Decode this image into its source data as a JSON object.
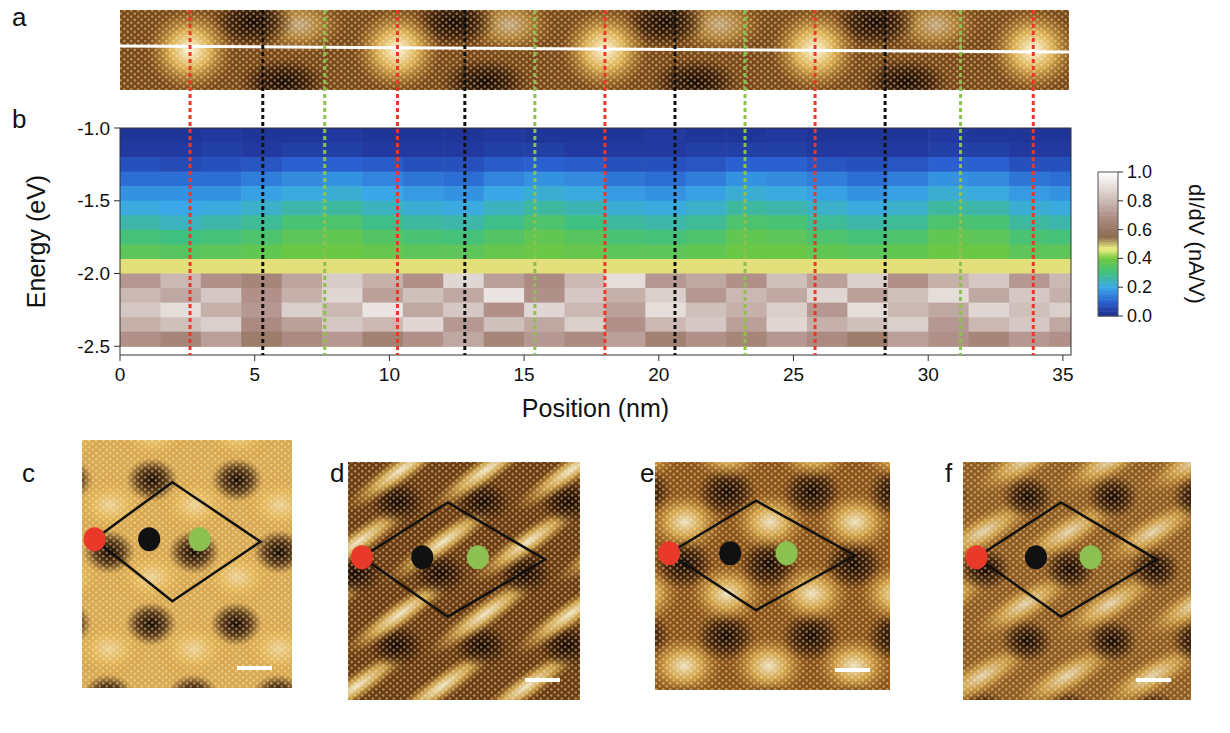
{
  "chart_data": {
    "type": "heatmap",
    "panel_labels": [
      "a",
      "b",
      "c",
      "d",
      "e",
      "f"
    ],
    "x_label": "Position (nm)",
    "y_label": "Energy (eV)",
    "x": [
      0.75,
      2.25,
      3.75,
      5.25,
      6.75,
      8.25,
      9.75,
      11.25,
      12.75,
      14.25,
      15.75,
      17.25,
      18.75,
      20.25,
      21.75,
      23.25,
      24.75,
      26.25,
      27.75,
      29.25,
      30.75,
      32.25,
      33.75,
      35.25
    ],
    "y": [
      -1.05,
      -1.15,
      -1.25,
      -1.35,
      -1.45,
      -1.55,
      -1.65,
      -1.75,
      -1.85,
      -1.95,
      -2.05,
      -2.15,
      -2.25,
      -2.35,
      -2.45
    ],
    "values": [
      [
        0.02,
        0.02,
        0.03,
        0.02,
        0.02,
        0.03,
        0.02,
        0.02,
        0.02,
        0.03,
        0.02,
        0.02,
        0.02,
        0.03,
        0.02,
        0.02,
        0.03,
        0.02,
        0.02,
        0.02,
        0.03,
        0.02,
        0.02,
        0.02
      ],
      [
        0.03,
        0.03,
        0.04,
        0.03,
        0.04,
        0.04,
        0.03,
        0.03,
        0.03,
        0.04,
        0.04,
        0.03,
        0.03,
        0.03,
        0.04,
        0.04,
        0.04,
        0.03,
        0.03,
        0.03,
        0.04,
        0.04,
        0.03,
        0.03
      ],
      [
        0.07,
        0.06,
        0.07,
        0.08,
        0.1,
        0.1,
        0.09,
        0.07,
        0.07,
        0.09,
        0.1,
        0.09,
        0.07,
        0.07,
        0.08,
        0.1,
        0.1,
        0.08,
        0.07,
        0.08,
        0.1,
        0.1,
        0.07,
        0.07
      ],
      [
        0.12,
        0.12,
        0.12,
        0.14,
        0.16,
        0.17,
        0.15,
        0.13,
        0.12,
        0.15,
        0.17,
        0.16,
        0.13,
        0.12,
        0.14,
        0.17,
        0.16,
        0.14,
        0.12,
        0.14,
        0.17,
        0.16,
        0.13,
        0.12
      ],
      [
        0.17,
        0.17,
        0.17,
        0.19,
        0.21,
        0.22,
        0.2,
        0.18,
        0.17,
        0.2,
        0.22,
        0.21,
        0.18,
        0.17,
        0.19,
        0.22,
        0.21,
        0.19,
        0.17,
        0.19,
        0.22,
        0.21,
        0.18,
        0.17
      ],
      [
        0.21,
        0.2,
        0.21,
        0.23,
        0.26,
        0.27,
        0.24,
        0.22,
        0.21,
        0.24,
        0.27,
        0.25,
        0.22,
        0.21,
        0.23,
        0.27,
        0.26,
        0.23,
        0.21,
        0.23,
        0.27,
        0.26,
        0.22,
        0.21
      ],
      [
        0.26,
        0.24,
        0.26,
        0.28,
        0.32,
        0.33,
        0.29,
        0.27,
        0.26,
        0.29,
        0.33,
        0.3,
        0.27,
        0.26,
        0.28,
        0.33,
        0.32,
        0.28,
        0.26,
        0.28,
        0.33,
        0.32,
        0.27,
        0.26
      ],
      [
        0.31,
        0.3,
        0.31,
        0.33,
        0.36,
        0.37,
        0.34,
        0.32,
        0.31,
        0.34,
        0.37,
        0.35,
        0.32,
        0.31,
        0.33,
        0.37,
        0.36,
        0.33,
        0.31,
        0.33,
        0.37,
        0.36,
        0.32,
        0.31
      ],
      [
        0.36,
        0.35,
        0.36,
        0.37,
        0.39,
        0.39,
        0.38,
        0.36,
        0.36,
        0.38,
        0.39,
        0.38,
        0.36,
        0.36,
        0.37,
        0.39,
        0.39,
        0.37,
        0.36,
        0.37,
        0.39,
        0.39,
        0.36,
        0.36
      ],
      [
        0.48,
        0.48,
        0.48,
        0.48,
        0.48,
        0.48,
        0.48,
        0.48,
        0.48,
        0.48,
        0.48,
        0.48,
        0.48,
        0.48,
        0.48,
        0.48,
        0.48,
        0.48,
        0.48,
        0.48,
        0.48,
        0.48,
        0.48,
        0.48
      ],
      [
        0.72,
        0.8,
        0.7,
        0.66,
        0.75,
        0.85,
        0.78,
        0.7,
        0.88,
        0.74,
        0.68,
        0.8,
        0.9,
        0.72,
        0.76,
        0.7,
        0.82,
        0.74,
        0.86,
        0.7,
        0.78,
        0.84,
        0.72,
        0.8
      ],
      [
        0.8,
        0.76,
        0.84,
        0.7,
        0.78,
        0.88,
        0.74,
        0.82,
        0.76,
        0.92,
        0.7,
        0.84,
        0.78,
        0.86,
        0.72,
        0.8,
        0.76,
        0.88,
        0.74,
        0.82,
        0.9,
        0.76,
        0.84,
        0.78
      ],
      [
        0.84,
        0.9,
        0.78,
        0.72,
        0.86,
        0.8,
        0.92,
        0.76,
        0.84,
        0.7,
        0.88,
        0.8,
        0.74,
        0.9,
        0.82,
        0.78,
        0.86,
        0.72,
        0.9,
        0.8,
        0.76,
        0.88,
        0.82,
        0.86
      ],
      [
        0.78,
        0.82,
        0.86,
        0.68,
        0.74,
        0.84,
        0.8,
        0.88,
        0.72,
        0.82,
        0.76,
        0.86,
        0.7,
        0.8,
        0.84,
        0.74,
        0.88,
        0.78,
        0.82,
        0.86,
        0.72,
        0.8,
        0.84,
        0.76
      ],
      [
        0.7,
        0.66,
        0.74,
        0.62,
        0.68,
        0.72,
        0.64,
        0.7,
        0.76,
        0.66,
        0.72,
        0.68,
        0.74,
        0.64,
        0.7,
        0.66,
        0.72,
        0.68,
        0.62,
        0.74,
        0.7,
        0.66,
        0.72,
        0.7
      ]
    ],
    "xlim": [
      0,
      35.3
    ],
    "xticks": [
      0,
      5,
      10,
      15,
      20,
      25,
      30,
      35
    ],
    "ylim": [
      -2.56,
      -1.0
    ],
    "yticks": [
      {
        "value": -1,
        "label": "-1.0"
      },
      {
        "value": -1.5,
        "label": "-1.5"
      },
      {
        "value": -2,
        "label": "-2.0"
      },
      {
        "value": -2.5,
        "label": "-2.5"
      }
    ],
    "colorbar": {
      "label": "dI/dV (nA/V)",
      "range": [
        0,
        1
      ],
      "ticks": [
        {
          "value": 0,
          "label": "0.0"
        },
        {
          "value": 0.2,
          "label": "0.2"
        },
        {
          "value": 0.4,
          "label": "0.4"
        },
        {
          "value": 0.6,
          "label": "0.6"
        },
        {
          "value": 0.8,
          "label": "0.8"
        },
        {
          "value": 1,
          "label": "1.0"
        }
      ]
    },
    "marker_lines": [
      {
        "color": "#e8392a",
        "x": [
          2.6,
          10.3,
          18.0,
          25.8,
          33.9
        ]
      },
      {
        "color": "#111111",
        "x": [
          5.3,
          12.8,
          20.6,
          28.4
        ]
      },
      {
        "color": "#8cc152",
        "x": [
          7.6,
          15.4,
          23.2,
          31.2
        ]
      }
    ]
  }
}
